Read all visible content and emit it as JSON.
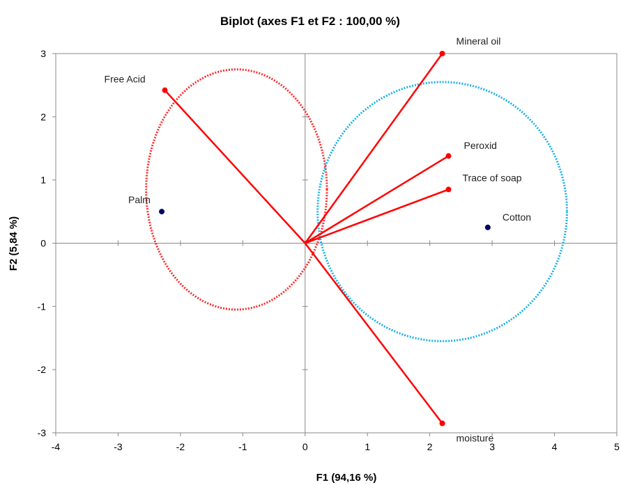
{
  "chart_data": {
    "type": "scatter",
    "title": "Biplot (axes F1 et F2 : 100,00 %)",
    "xlabel": "F1 (94,16 %)",
    "ylabel": "F2 (5,84 %)",
    "xlim": [
      -4,
      5
    ],
    "ylim": [
      -3,
      3
    ],
    "x_ticks": [
      -4,
      -3,
      -2,
      -1,
      0,
      1,
      2,
      3,
      4,
      5
    ],
    "y_ticks": [
      -3,
      -2,
      -1,
      0,
      1,
      2,
      3
    ],
    "grid": false,
    "colors": {
      "vectors": "#ff0000",
      "observations": "#000066",
      "red_ellipse": "#ff2a2a",
      "blue_ellipse": "#1ab2e6"
    },
    "variables": [
      {
        "name": "Mineral oil",
        "x": 2.2,
        "y": 3.0
      },
      {
        "name": "Free Acid",
        "x": -2.25,
        "y": 2.42
      },
      {
        "name": "Peroxid",
        "x": 2.3,
        "y": 1.38
      },
      {
        "name": "Trace of soap",
        "x": 2.3,
        "y": 0.85
      },
      {
        "name": "moisture",
        "x": 2.2,
        "y": -2.85
      }
    ],
    "observations": [
      {
        "name": "Palm",
        "x": -2.3,
        "y": 0.5
      },
      {
        "name": "Cotton",
        "x": 2.93,
        "y": 0.25
      }
    ],
    "ellipses": [
      {
        "color": "red",
        "cx": -1.1,
        "cy": 0.85,
        "rx": 1.45,
        "ry": 1.9
      },
      {
        "color": "blue",
        "cx": 2.2,
        "cy": 0.5,
        "rx": 2.0,
        "ry": 2.05
      }
    ]
  }
}
